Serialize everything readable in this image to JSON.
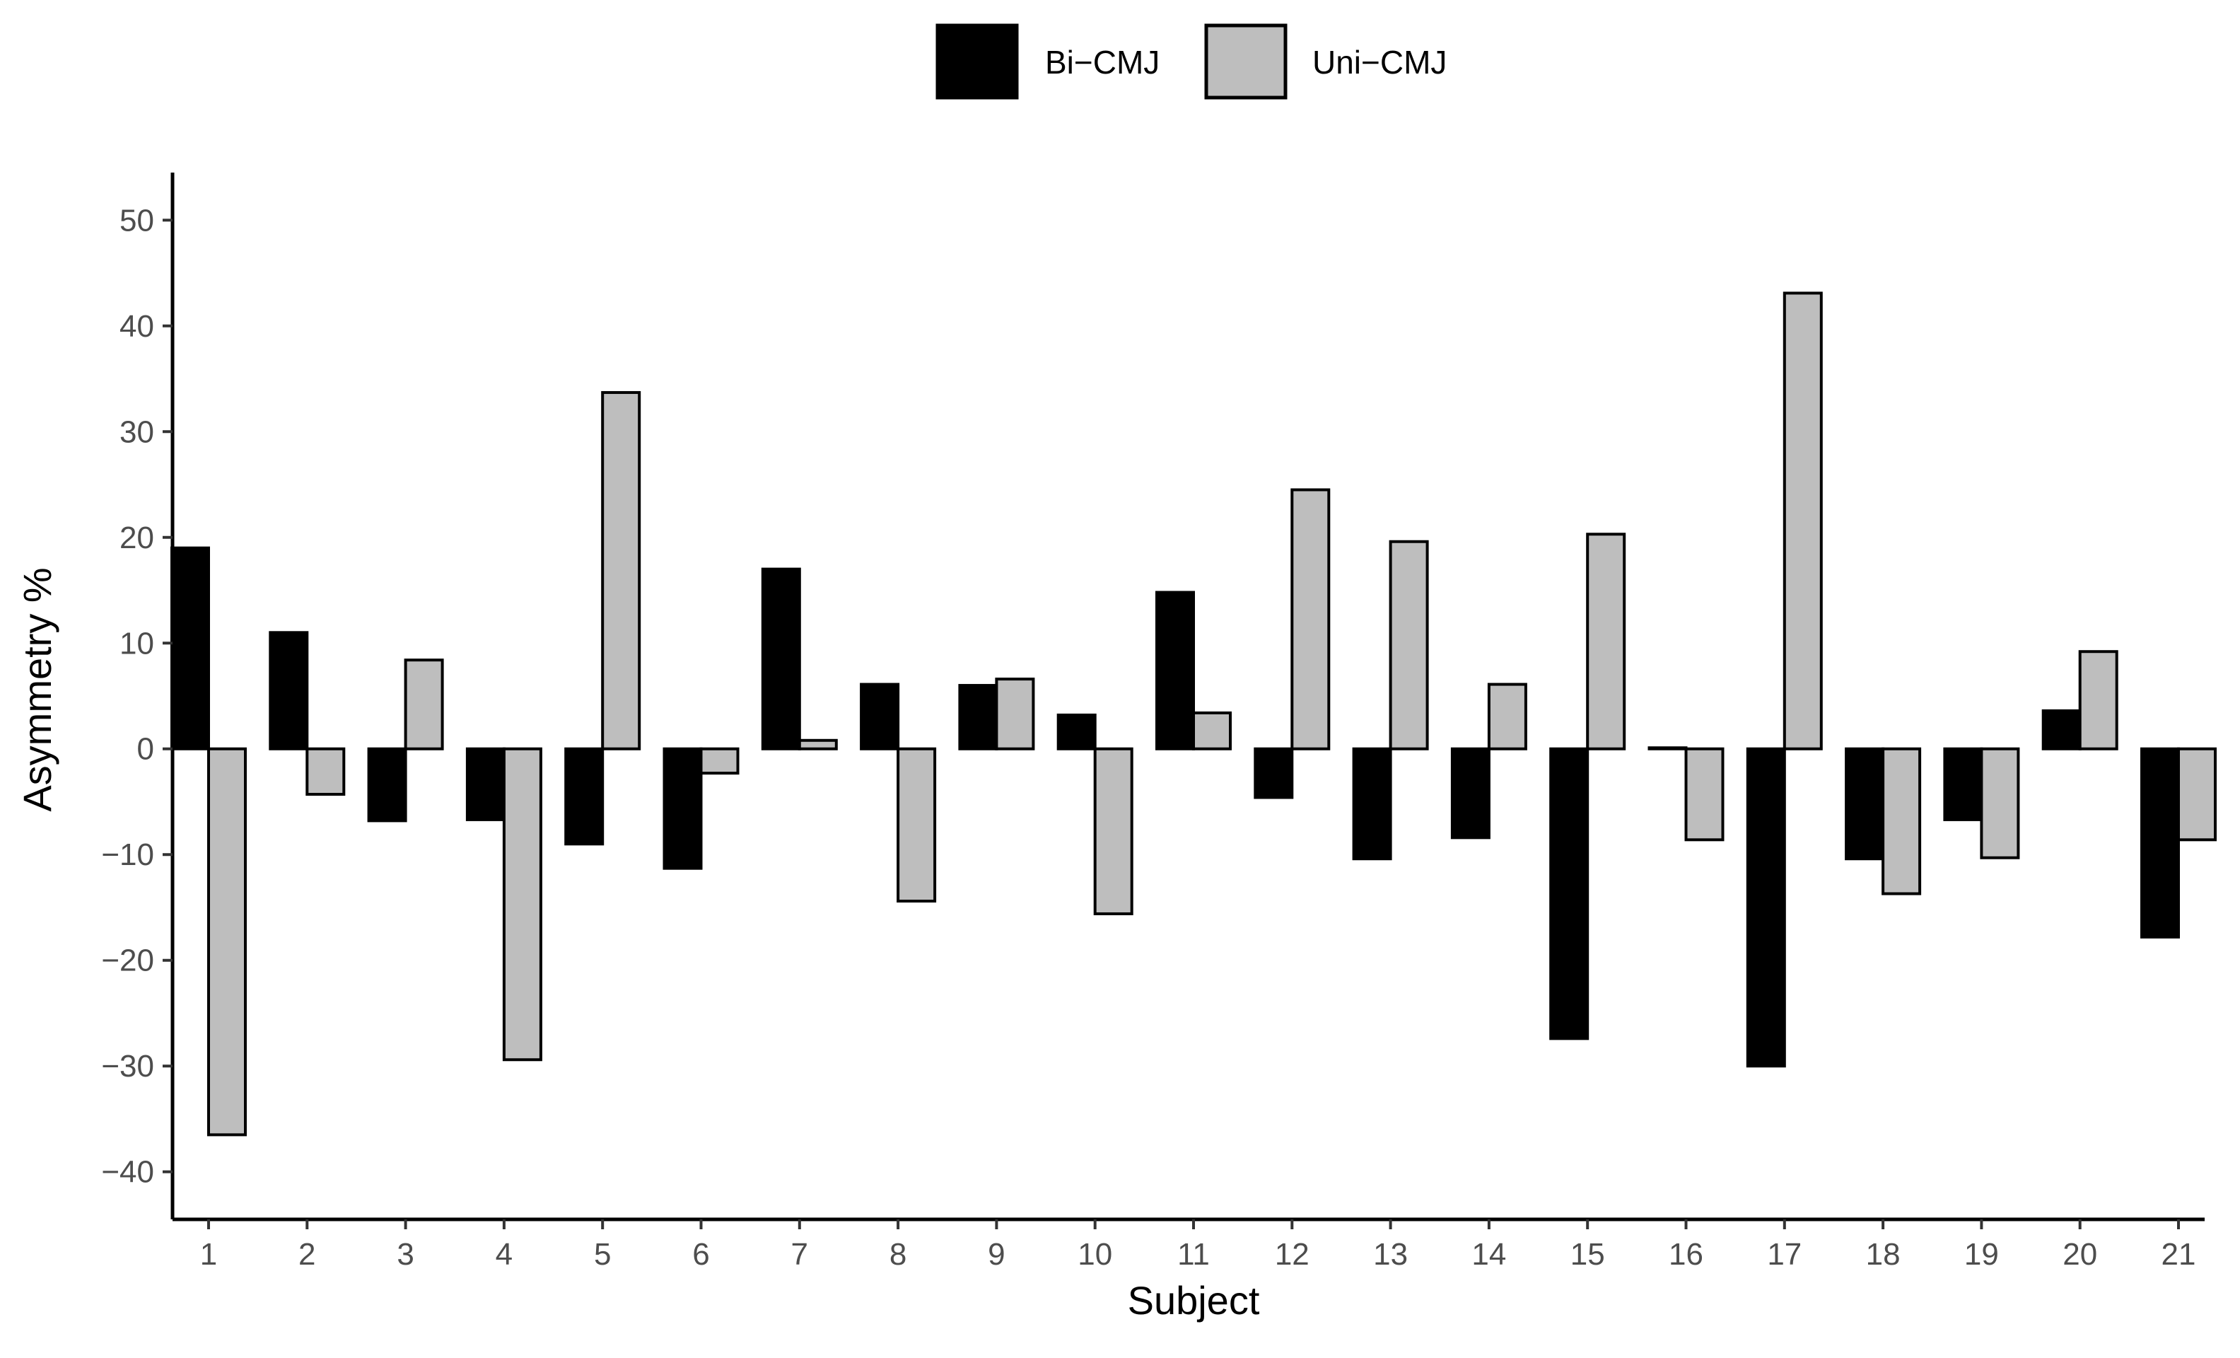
{
  "chart_data": {
    "type": "bar",
    "title": "",
    "xlabel": "Subject",
    "ylabel": "Asymmetry %",
    "categories": [
      "1",
      "2",
      "3",
      "4",
      "5",
      "6",
      "7",
      "8",
      "9",
      "10",
      "11",
      "12",
      "13",
      "14",
      "15",
      "16",
      "17",
      "18",
      "19",
      "20",
      "21"
    ],
    "series": [
      {
        "name": "Bi−CMJ",
        "color": "#000000",
        "values": [
          19,
          11,
          -6.8,
          -6.7,
          -9,
          -11.3,
          17,
          6.1,
          6,
          3.2,
          14.8,
          -4.6,
          -10.4,
          -8.4,
          -27.4,
          0.1,
          -30,
          -10.4,
          -6.7,
          3.6,
          -17.8
        ]
      },
      {
        "name": "Uni−CMJ",
        "color": "#bebebe",
        "values": [
          -36.5,
          -4.3,
          8.4,
          -29.4,
          33.7,
          -2.3,
          0.8,
          -14.4,
          6.6,
          -15.6,
          3.4,
          24.5,
          19.6,
          6.1,
          20.3,
          -8.6,
          43.1,
          -13.7,
          -10.3,
          9.2,
          -8.6
        ]
      }
    ],
    "yticks": [
      -40,
      -30,
      -20,
      -10,
      0,
      10,
      20,
      30,
      40,
      50
    ],
    "ylim": [
      -44.5,
      54.5
    ],
    "legend_position": "top",
    "grid": false
  }
}
